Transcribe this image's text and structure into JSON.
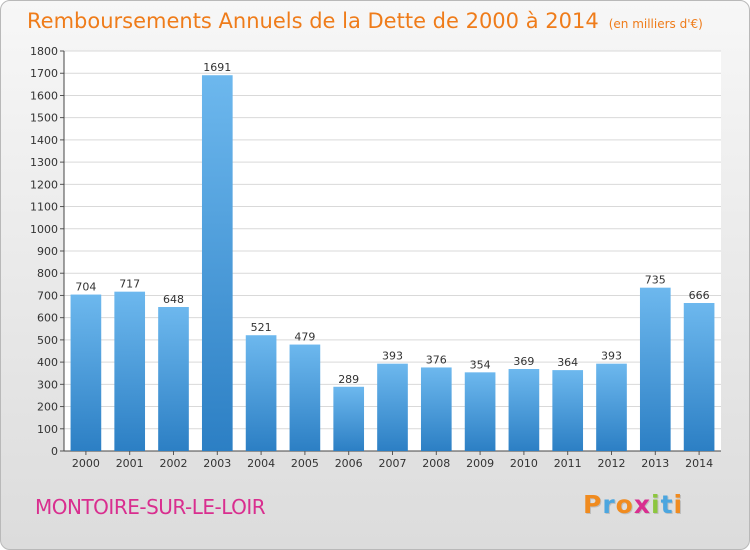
{
  "title": "Remboursements Annuels de la Dette de 2000 à 2014",
  "subtitle": "(en milliers d'€)",
  "commune": "MONTOIRE-SUR-LE-LOIR",
  "logo": {
    "letters": [
      "P",
      "r",
      "o",
      "x",
      "i",
      "t",
      "i"
    ],
    "colors": [
      "#f08b1f",
      "#4ca6df",
      "#f08b1f",
      "#d92e8f",
      "#8dc63f",
      "#4ca6df",
      "#f08b1f"
    ]
  },
  "colors": {
    "title": "#ef7c1a",
    "commune": "#d92e8f",
    "bar_light": "#6db8ee",
    "bar_dark": "#2c7fc4"
  },
  "chart_data": {
    "type": "bar",
    "categories": [
      "2000",
      "2001",
      "2002",
      "2003",
      "2004",
      "2005",
      "2006",
      "2007",
      "2008",
      "2009",
      "2010",
      "2011",
      "2012",
      "2013",
      "2014"
    ],
    "values": [
      704,
      717,
      648,
      1691,
      521,
      479,
      289,
      393,
      376,
      354,
      369,
      364,
      393,
      735,
      666
    ],
    "ylim": [
      0,
      1800
    ],
    "yticks": [
      0,
      100,
      200,
      300,
      400,
      500,
      600,
      700,
      800,
      900,
      1000,
      1100,
      1200,
      1300,
      1400,
      1500,
      1600,
      1700,
      1800
    ],
    "grid": true,
    "data_labels": true
  }
}
